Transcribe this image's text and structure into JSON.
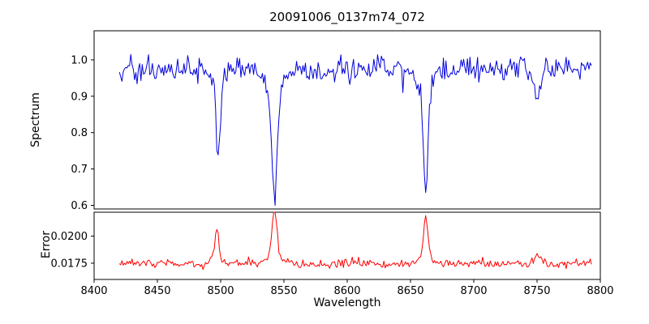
{
  "chart_data": {
    "type": "line",
    "title": "20091006_0137m74_072",
    "xlabel": "Wavelength",
    "grid": false,
    "legend": "none",
    "x_range": [
      8400,
      8800
    ],
    "x_data_range": [
      8420,
      8793
    ],
    "x_ticks": [
      8400,
      8450,
      8500,
      8550,
      8600,
      8650,
      8700,
      8750,
      8800
    ],
    "panels": [
      {
        "name": "spectrum",
        "ylabel": "Spectrum",
        "color": "#0000dd",
        "ylim": [
          0.59,
          1.08
        ],
        "y_ticks": [
          0.6,
          0.7,
          0.8,
          0.9,
          1.0
        ],
        "y_tick_labels": [
          "0.6",
          "0.7",
          "0.8",
          "0.9",
          "1.0"
        ],
        "continuum": 0.975,
        "noise_sigma": 0.016,
        "absorption_lines": [
          {
            "center": 8498.0,
            "depth": 0.2,
            "core_width": 1.6,
            "wing_depth": 0.045,
            "wing_width": 4.0,
            "min_value": 0.73
          },
          {
            "center": 8542.5,
            "depth": 0.28,
            "core_width": 2.0,
            "wing_depth": 0.085,
            "wing_width": 6.0,
            "min_value": 0.61
          },
          {
            "center": 8662.0,
            "depth": 0.27,
            "core_width": 1.8,
            "wing_depth": 0.065,
            "wing_width": 5.0,
            "min_value": 0.64
          },
          {
            "center": 8750.0,
            "depth": 0.08,
            "core_width": 2.5,
            "wing_depth": 0.0,
            "wing_width": 5.0,
            "min_value": 0.87
          }
        ]
      },
      {
        "name": "error",
        "ylabel": "Error",
        "color": "#ff0000",
        "ylim": [
          0.016,
          0.0222
        ],
        "y_ticks": [
          0.0175,
          0.02
        ],
        "y_tick_labels": [
          "0.0175",
          "0.0200"
        ],
        "baseline": 0.01745,
        "noise_sigma": 0.0002,
        "peaks": [
          {
            "center": 8497.0,
            "height": 0.0027,
            "width": 1.5,
            "wing_height": 0.0005,
            "wing_width": 4.0,
            "max_value": 0.0202
          },
          {
            "center": 8542.5,
            "height": 0.0046,
            "width": 1.8,
            "wing_height": 0.0008,
            "wing_width": 5.0,
            "max_value": 0.0221
          },
          {
            "center": 8662.0,
            "height": 0.0036,
            "width": 1.8,
            "wing_height": 0.0006,
            "wing_width": 5.0,
            "max_value": 0.0211
          },
          {
            "center": 8750.0,
            "height": 0.0009,
            "width": 2.5,
            "wing_height": 0.0,
            "wing_width": 5.0,
            "max_value": 0.0185
          }
        ]
      }
    ]
  }
}
